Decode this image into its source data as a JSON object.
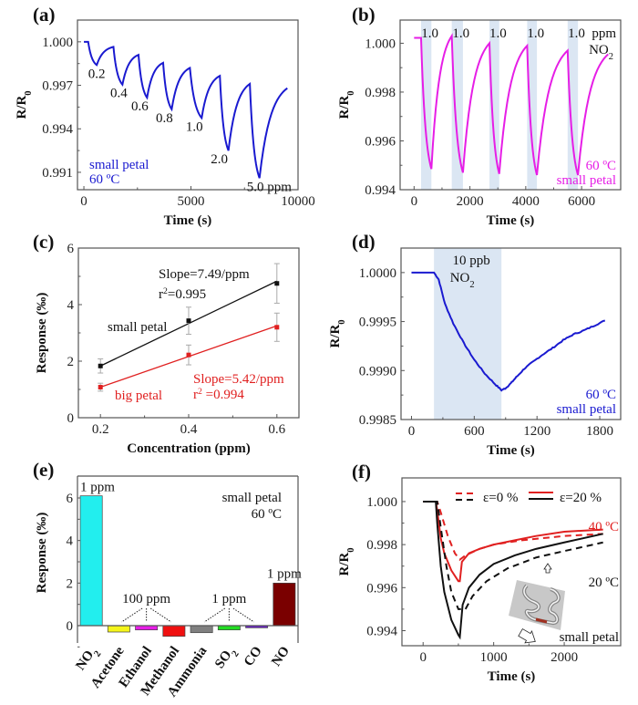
{
  "chart_data": [
    {
      "id": "a",
      "panel_label": "(a)",
      "type": "line",
      "xlabel": "Time (s)",
      "ylabel": "R/R0",
      "xlim": [
        -300,
        10000
      ],
      "ylim": [
        0.9898,
        1.0015
      ],
      "xticks": [
        0,
        5000,
        10000
      ],
      "xtick_labels": [
        "0",
        "5000",
        "10000"
      ],
      "yticks": [
        1.0,
        0.997,
        0.994,
        0.991
      ],
      "ytick_labels": [
        "1.000",
        "0.997",
        "0.994",
        "0.991"
      ],
      "color": "#1a1ad0",
      "cycles": [
        {
          "on": 200,
          "off": 600,
          "min": 0.9984,
          "recover_to": 0.99965,
          "recover_end": 1380,
          "conc_label": "0.2"
        },
        {
          "on": 1380,
          "off": 1800,
          "min": 0.99705,
          "recover_to": 0.9991,
          "recover_end": 2550,
          "conc_label": "0.4"
        },
        {
          "on": 2550,
          "off": 2950,
          "min": 0.99615,
          "recover_to": 0.99855,
          "recover_end": 3700,
          "conc_label": "0.6"
        },
        {
          "on": 3700,
          "off": 4100,
          "min": 0.99535,
          "recover_to": 0.9982,
          "recover_end": 4950,
          "conc_label": "0.8"
        },
        {
          "on": 4950,
          "off": 5500,
          "min": 0.99475,
          "recover_to": 0.99765,
          "recover_end": 6350,
          "conc_label": "1.0"
        },
        {
          "on": 6350,
          "off": 6750,
          "min": 0.9925,
          "recover_to": 0.9971,
          "recover_end": 7750,
          "conc_label": "2.0"
        },
        {
          "on": 7750,
          "off": 8200,
          "min": 0.9906,
          "recover_to": 0.9968,
          "recover_end": 9500,
          "conc_label": "5.0 ppm"
        }
      ],
      "start": {
        "t": 0,
        "v": 1.0
      },
      "annotation": [
        "small petal",
        "60 ºC"
      ]
    },
    {
      "id": "b",
      "panel_label": "(b)",
      "type": "line",
      "xlabel": "Time (s)",
      "ylabel": "R/R0",
      "xlim": [
        -500,
        7400
      ],
      "ylim": [
        0.994,
        1.00095
      ],
      "xticks": [
        0,
        2000,
        4000,
        6000
      ],
      "xtick_labels": [
        "0",
        "2000",
        "4000",
        "6000"
      ],
      "yticks": [
        1.0,
        0.998,
        0.996,
        0.994
      ],
      "ytick_labels": [
        "1.000",
        "0.998",
        "0.996",
        "0.994"
      ],
      "color": "#e61ee6",
      "shade_color": "#dbe6f3",
      "cycles": [
        {
          "on": 250,
          "off": 620,
          "min": 0.99485,
          "recover_to": 1.0003,
          "recover_end": 1350
        },
        {
          "on": 1350,
          "off": 1750,
          "min": 0.9947,
          "recover_to": 1.0,
          "recover_end": 2700
        },
        {
          "on": 2700,
          "off": 3050,
          "min": 0.99465,
          "recover_to": 0.9999,
          "recover_end": 4050
        },
        {
          "on": 4050,
          "off": 4400,
          "min": 0.9946,
          "recover_to": 0.9997,
          "recover_end": 5500
        },
        {
          "on": 5500,
          "off": 5870,
          "min": 0.9946,
          "recover_to": 0.99955,
          "recover_end": 6950
        }
      ],
      "start": {
        "t": 0,
        "v": 1.00022
      },
      "pulse_labels": [
        "1.0",
        "1.0",
        "1.0",
        "1.0",
        "1.0"
      ],
      "unit_label": "ppm",
      "gas_label": "NO",
      "gas_sub": "2",
      "annotation": [
        "60 ºC",
        "small petal"
      ]
    },
    {
      "id": "c",
      "panel_label": "(c)",
      "type": "scatter",
      "xlabel": "Concentration (ppm)",
      "ylabel": "Response (‰)",
      "xlim": [
        0.15,
        0.65
      ],
      "ylim": [
        0,
        6
      ],
      "xticks": [
        0.2,
        0.4,
        0.6
      ],
      "xtick_labels": [
        "0.2",
        "0.4",
        "0.6"
      ],
      "yticks": [
        0,
        2,
        4,
        6
      ],
      "ytick_labels": [
        "0",
        "2",
        "4",
        "6"
      ],
      "series": [
        {
          "name": "small petal",
          "color": "#111111",
          "x": [
            0.2,
            0.4,
            0.6
          ],
          "y": [
            1.83,
            3.43,
            4.75
          ],
          "err": [
            0.25,
            0.48,
            0.7
          ],
          "fit": [
            [
              0.2,
              1.83
            ],
            [
              0.6,
              4.83
            ]
          ],
          "slope_label": "Slope=7.49/ppm",
          "r2_label": "r",
          "r2_value": "=0.995"
        },
        {
          "name": "big petal",
          "color": "#e02020",
          "x": [
            0.2,
            0.4,
            0.6
          ],
          "y": [
            1.08,
            2.22,
            3.2
          ],
          "err": [
            0.14,
            0.35,
            0.5
          ],
          "fit": [
            [
              0.2,
              1.08
            ],
            [
              0.6,
              3.25
            ]
          ],
          "slope_label": "Slope=5.42/ppm",
          "r2_label": "r",
          "r2_value": " =0.994"
        }
      ]
    },
    {
      "id": "d",
      "panel_label": "(d)",
      "type": "line",
      "xlabel": "Time (s)",
      "ylabel": "R/R0",
      "xlim": [
        -100,
        2000
      ],
      "ylim": [
        0.9985,
        1.00025
      ],
      "xticks": [
        0,
        600,
        1200,
        1800
      ],
      "xtick_labels": [
        "0",
        "600",
        "1200",
        "1800"
      ],
      "yticks": [
        1.0,
        0.9995,
        0.999,
        0.9985
      ],
      "ytick_labels": [
        "1.0000",
        "0.9995",
        "0.9990",
        "0.9985"
      ],
      "color": "#1a1ad0",
      "shade": [
        215,
        860
      ],
      "shade_color": "#dbe6f3",
      "points": [
        [
          0,
          1.0
        ],
        [
          200,
          1.0
        ],
        [
          215,
          1.0
        ],
        [
          260,
          0.99993
        ],
        [
          320,
          0.99968
        ],
        [
          400,
          0.99948
        ],
        [
          500,
          0.99928
        ],
        [
          600,
          0.99911
        ],
        [
          700,
          0.99897
        ],
        [
          800,
          0.99886
        ],
        [
          860,
          0.9988
        ],
        [
          900,
          0.99882
        ],
        [
          950,
          0.99887
        ],
        [
          1000,
          0.99893
        ],
        [
          1080,
          0.99902
        ],
        [
          1150,
          0.99908
        ],
        [
          1250,
          0.99916
        ],
        [
          1350,
          0.99923
        ],
        [
          1450,
          0.99931
        ],
        [
          1550,
          0.99937
        ],
        [
          1650,
          0.99941
        ],
        [
          1750,
          0.99946
        ],
        [
          1850,
          0.99951
        ]
      ],
      "shade_label": "10 ppb",
      "gas_label": "NO",
      "gas_sub": "2",
      "annotation": [
        "60 ºC",
        "small petal"
      ]
    },
    {
      "id": "e",
      "panel_label": "(e)",
      "type": "bar",
      "ylabel": "Response (‰)",
      "ylim": [
        -1,
        7
      ],
      "yticks": [
        0,
        2,
        4,
        6
      ],
      "ytick_labels": [
        "0",
        "2",
        "4",
        "6"
      ],
      "categories": [
        "NO2",
        "Acetone",
        "Ethanol",
        "Methanol",
        "Ammonia",
        "SO2",
        "CO",
        "NO"
      ],
      "category_labels": [
        {
          "t": "NO",
          "s": "2"
        },
        {
          "t": "Acetone",
          "s": ""
        },
        {
          "t": "Ethanol",
          "s": ""
        },
        {
          "t": "Methanol",
          "s": ""
        },
        {
          "t": "Ammonia",
          "s": ""
        },
        {
          "t": "SO",
          "s": "2"
        },
        {
          "t": "CO",
          "s": ""
        },
        {
          "t": "NO",
          "s": ""
        }
      ],
      "values": [
        6.1,
        -0.3,
        -0.2,
        -0.5,
        -0.33,
        -0.2,
        -0.1,
        2.0
      ],
      "colors": [
        "#22eeee",
        "#f5f51a",
        "#e81ee8",
        "#f01010",
        "#808080",
        "#22dd22",
        "#6a1ec8",
        "#7a0000"
      ],
      "group_labels": [
        {
          "text": "1 ppm",
          "targets": [
            0
          ]
        },
        {
          "text": "100 ppm",
          "targets": [
            1,
            2,
            3
          ]
        },
        {
          "text": "1 ppm",
          "targets": [
            4,
            5,
            6
          ]
        },
        {
          "text": "1 ppm",
          "targets": [
            7
          ]
        }
      ],
      "annotation": [
        "small petal",
        "60 ºC"
      ]
    },
    {
      "id": "f",
      "panel_label": "(f)",
      "type": "line",
      "xlabel": "Time (s)",
      "ylabel": "R/R0",
      "xlim": [
        -300,
        2800
      ],
      "ylim": [
        0.9933,
        1.0011
      ],
      "xticks": [
        0,
        1000,
        2000
      ],
      "xtick_labels": [
        "0",
        "1000",
        "2000"
      ],
      "yticks": [
        1.0,
        0.998,
        0.996,
        0.994
      ],
      "ytick_labels": [
        "1.000",
        "0.998",
        "0.996",
        "0.994"
      ],
      "series": [
        {
          "name": "40 ºC ε=20 %",
          "color": "#e02020",
          "dash": false,
          "points": [
            [
              0,
              1.0
            ],
            [
              180,
              1.0
            ],
            [
              200,
              0.9996
            ],
            [
              250,
              0.9983
            ],
            [
              300,
              0.9976
            ],
            [
              400,
              0.9968
            ],
            [
              500,
              0.9963
            ],
            [
              520,
              0.9963
            ],
            [
              550,
              0.9972
            ],
            [
              650,
              0.9976
            ],
            [
              800,
              0.9978
            ],
            [
              1000,
              0.998
            ],
            [
              1300,
              0.9982
            ],
            [
              1600,
              0.9984
            ],
            [
              2000,
              0.9986
            ],
            [
              2550,
              0.9987
            ]
          ]
        },
        {
          "name": "40 ºC ε=0 %",
          "color": "#e02020",
          "dash": true,
          "points": [
            [
              0,
              1.0
            ],
            [
              200,
              1.0
            ],
            [
              250,
              0.9995
            ],
            [
              350,
              0.9984
            ],
            [
              450,
              0.9976
            ],
            [
              520,
              0.9973
            ],
            [
              600,
              0.9975
            ],
            [
              800,
              0.9978
            ],
            [
              1000,
              0.998
            ],
            [
              1400,
              0.9982
            ],
            [
              2000,
              0.9984
            ],
            [
              2550,
              0.9985
            ]
          ]
        },
        {
          "name": "20 ºC ε=20 %",
          "color": "#111111",
          "dash": false,
          "points": [
            [
              0,
              1.0
            ],
            [
              180,
              1.0
            ],
            [
              200,
              0.999
            ],
            [
              250,
              0.997
            ],
            [
              300,
              0.9958
            ],
            [
              400,
              0.9945
            ],
            [
              500,
              0.9938
            ],
            [
              520,
              0.9937
            ],
            [
              560,
              0.9952
            ],
            [
              650,
              0.996
            ],
            [
              800,
              0.9966
            ],
            [
              1000,
              0.9971
            ],
            [
              1300,
              0.9975
            ],
            [
              1600,
              0.9978
            ],
            [
              2000,
              0.9981
            ],
            [
              2550,
              0.9985
            ]
          ]
        },
        {
          "name": "20 ºC ε=0 %",
          "color": "#111111",
          "dash": true,
          "points": [
            [
              0,
              1.0
            ],
            [
              200,
              1.0
            ],
            [
              250,
              0.9988
            ],
            [
              330,
              0.997
            ],
            [
              400,
              0.9958
            ],
            [
              500,
              0.995
            ],
            [
              540,
              0.995
            ],
            [
              600,
              0.995
            ],
            [
              700,
              0.9956
            ],
            [
              900,
              0.9963
            ],
            [
              1200,
              0.9969
            ],
            [
              1600,
              0.9974
            ],
            [
              2000,
              0.9977
            ],
            [
              2550,
              0.9981
            ]
          ]
        }
      ],
      "legend": {
        "dashed_label": "ε=0 %",
        "solid_label": "ε=20 %",
        "placement": "top"
      },
      "temp_labels": [
        {
          "text": "40 ºC",
          "color": "#e02020"
        },
        {
          "text": "20 ºC",
          "color": "#111111"
        }
      ],
      "annotation": "small petal",
      "inset": "strain diagram of serpentine petal"
    }
  ]
}
